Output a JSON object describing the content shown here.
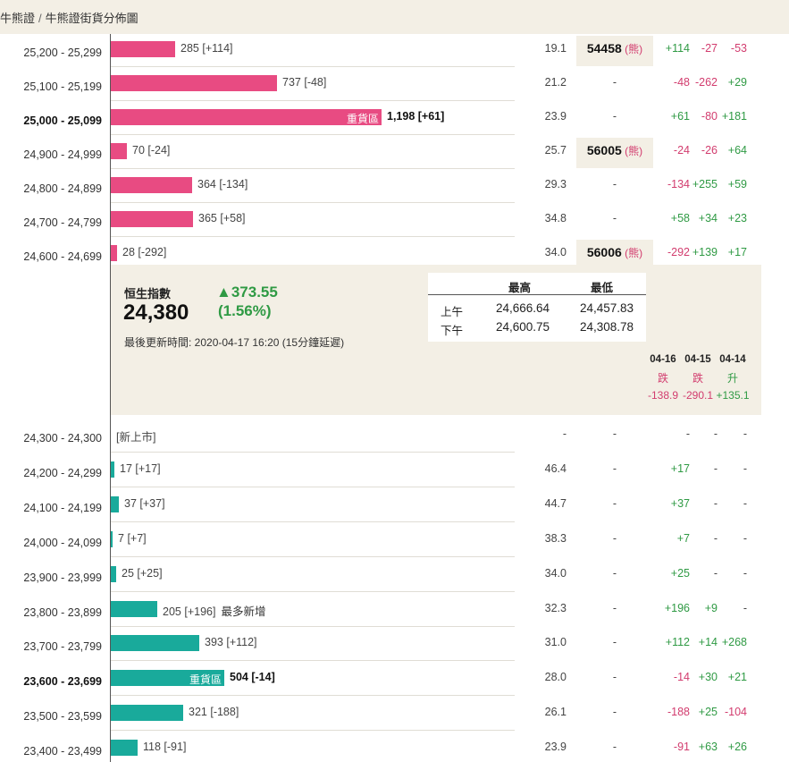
{
  "breadcrumb": {
    "parent": "牛熊證",
    "separator": "/",
    "current": "牛熊證街貨分佈圖"
  },
  "bull_rows": [
    {
      "range": "25,200 - 25,299",
      "count": "285",
      "delta": "[+114]",
      "width": 72,
      "ratio": "19.1",
      "code": "54458",
      "tag": "熊",
      "c1": "+114",
      "c2": "-27",
      "c3": "-53"
    },
    {
      "range": "25,100 - 25,199",
      "count": "737",
      "delta": "[-48]",
      "width": 186,
      "ratio": "21.2",
      "code": "-",
      "tag": "",
      "c1": "-48",
      "c2": "-262",
      "c3": "+29"
    },
    {
      "range": "25,000 - 25,099",
      "count": "1,198",
      "delta": "[+61]",
      "width": 303,
      "ratio": "23.9",
      "code": "-",
      "tag": "",
      "c1": "+61",
      "c2": "-80",
      "c3": "+181",
      "bold": true,
      "heavy": "重貨區"
    },
    {
      "range": "24,900 - 24,999",
      "count": "70",
      "delta": "[-24]",
      "width": 18,
      "ratio": "25.7",
      "code": "56005",
      "tag": "熊",
      "c1": "-24",
      "c2": "-26",
      "c3": "+64"
    },
    {
      "range": "24,800 - 24,899",
      "count": "364",
      "delta": "[-134]",
      "width": 91,
      "ratio": "29.3",
      "code": "-",
      "tag": "",
      "c1": "-134",
      "c2": "+255",
      "c3": "+59"
    },
    {
      "range": "24,700 - 24,799",
      "count": "365",
      "delta": "[+58]",
      "width": 92,
      "ratio": "34.8",
      "code": "-",
      "tag": "",
      "c1": "+58",
      "c2": "+34",
      "c3": "+23"
    },
    {
      "range": "24,600 - 24,699",
      "count": "28",
      "delta": "[-292]",
      "width": 7,
      "ratio": "34.0",
      "code": "56006",
      "tag": "熊",
      "c1": "-292",
      "c2": "+139",
      "c3": "+17"
    }
  ],
  "index_panel": {
    "name": "恒生指數",
    "value": "24,380",
    "change": "▲373.55",
    "percent": "(1.56%)",
    "updated": "最後更新時間: 2020-04-17 16:20 (15分鐘延遲)",
    "hl_header_high": "最高",
    "hl_header_low": "最低",
    "am_label": "上午",
    "am_high": "24,666.64",
    "am_low": "24,457.83",
    "pm_label": "下午",
    "pm_high": "24,600.75",
    "pm_low": "24,308.78",
    "history": [
      {
        "date": "04-16",
        "dir": "跌",
        "val": "-138.9",
        "cls": "neg"
      },
      {
        "date": "04-15",
        "dir": "跌",
        "val": "-290.1",
        "cls": "neg"
      },
      {
        "date": "04-14",
        "dir": "升",
        "val": "+135.1",
        "cls": "pos"
      }
    ]
  },
  "bear_rows": [
    {
      "range": "24,300 - 24,300",
      "count": "[新上市]",
      "delta": "",
      "width": 0,
      "ratio": "-",
      "code": "-",
      "c1": "-",
      "c2": "-",
      "c3": "-"
    },
    {
      "range": "24,200 - 24,299",
      "count": "17",
      "delta": "[+17]",
      "width": 4,
      "ratio": "46.4",
      "code": "-",
      "c1": "+17",
      "c2": "-",
      "c3": "-"
    },
    {
      "range": "24,100 - 24,199",
      "count": "37",
      "delta": "[+37]",
      "width": 9,
      "ratio": "44.7",
      "code": "-",
      "c1": "+37",
      "c2": "-",
      "c3": "-"
    },
    {
      "range": "24,000 - 24,099",
      "count": "7",
      "delta": "[+7]",
      "width": 2,
      "ratio": "38.3",
      "code": "-",
      "c1": "+7",
      "c2": "-",
      "c3": "-"
    },
    {
      "range": "23,900 - 23,999",
      "count": "25",
      "delta": "[+25]",
      "width": 6,
      "ratio": "34.0",
      "code": "-",
      "c1": "+25",
      "c2": "-",
      "c3": "-"
    },
    {
      "range": "23,800 - 23,899",
      "count": "205",
      "delta": "[+196]",
      "width": 52,
      "ratio": "32.3",
      "code": "-",
      "c1": "+196",
      "c2": "+9",
      "c3": "-",
      "note": "最多新增"
    },
    {
      "range": "23,700 - 23,799",
      "count": "393",
      "delta": "[+112]",
      "width": 99,
      "ratio": "31.0",
      "code": "-",
      "c1": "+112",
      "c2": "+14",
      "c3": "+268"
    },
    {
      "range": "23,600 - 23,699",
      "count": "504",
      "delta": "[-14]",
      "width": 127,
      "ratio": "28.0",
      "code": "-",
      "c1": "-14",
      "c2": "+30",
      "c3": "+21",
      "bold": true,
      "heavy": "重貨區"
    },
    {
      "range": "23,500 - 23,599",
      "count": "321",
      "delta": "[-188]",
      "width": 81,
      "ratio": "26.1",
      "code": "-",
      "c1": "-188",
      "c2": "+25",
      "c3": "-104"
    },
    {
      "range": "23,400 - 23,499",
      "count": "118",
      "delta": "[-91]",
      "width": 30,
      "ratio": "23.9",
      "code": "-",
      "c1": "-91",
      "c2": "+63",
      "c3": "+26"
    }
  ],
  "colors": {
    "bull_bar": "#e84b82",
    "bear_bar": "#19aa9b",
    "positive": "#2f9a44",
    "negative": "#d23c6e",
    "panel_bg": "#f3efe5"
  }
}
